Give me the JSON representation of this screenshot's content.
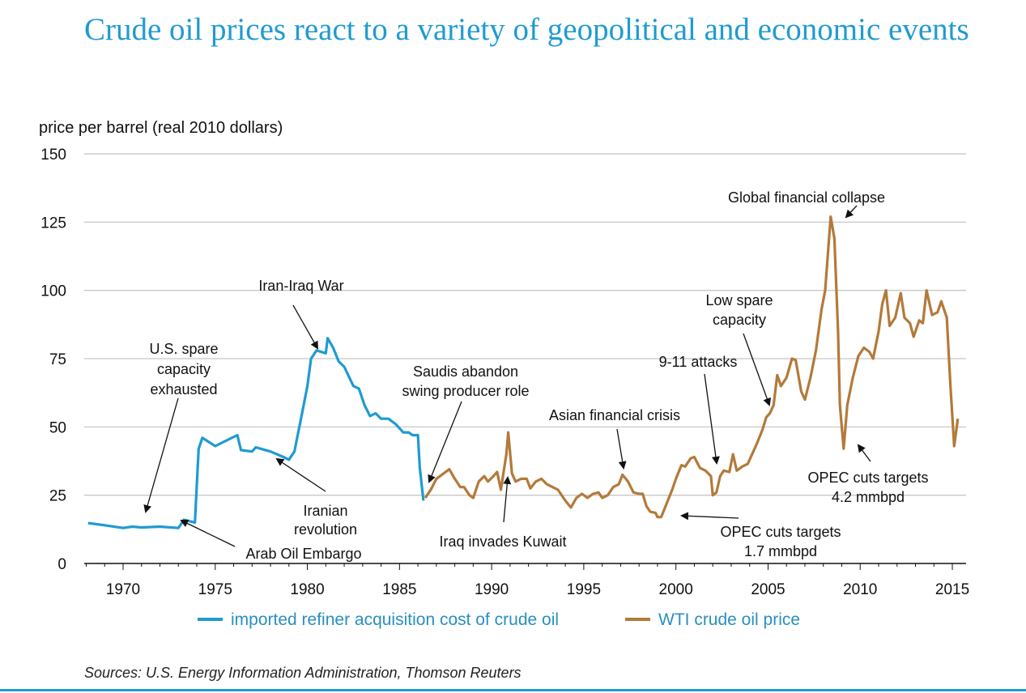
{
  "title": "Crude oil prices react to a variety of geopolitical and economic events",
  "source": "Sources: U.S. Energy Information Administration, Thomson Reuters",
  "chart_data": {
    "type": "line",
    "ylabel": "price per barrel (real 2010 dollars)",
    "xlabel": "",
    "xlim": [
      1967.9,
      2015.8
    ],
    "ylim": [
      0,
      150
    ],
    "yticks": [
      0,
      25,
      50,
      75,
      100,
      125,
      150
    ],
    "xticks": [
      1970,
      1975,
      1980,
      1985,
      1990,
      1995,
      2000,
      2005,
      2010,
      2015
    ],
    "grid": "horizontal",
    "legend_placement": "bottom",
    "series": [
      {
        "name": "imported refiner acquisition cost of crude oil",
        "color": "#1f9bd1",
        "x": [
          1968.1,
          1969,
          1970,
          1970.5,
          1971,
          1972,
          1973,
          1973.3,
          1973.9,
          1974.1,
          1974.3,
          1975,
          1975.6,
          1976.2,
          1976.4,
          1977,
          1977.2,
          1978,
          1978.7,
          1979,
          1979.3,
          1979.8,
          1980,
          1980.2,
          1980.5,
          1981,
          1981.1,
          1981.4,
          1981.7,
          1982,
          1982.5,
          1982.8,
          1983.1,
          1983.4,
          1983.7,
          1984,
          1984.4,
          1984.8,
          1985.2,
          1985.5,
          1985.7,
          1986,
          1986.1,
          1986.3
        ],
        "y": [
          14.8,
          14,
          13,
          13.5,
          13.2,
          13.5,
          13,
          16,
          15,
          42,
          46,
          43,
          45,
          47,
          41.5,
          41,
          42.5,
          41,
          39,
          38,
          41,
          58,
          65,
          75,
          78,
          77,
          82.5,
          79,
          74,
          72,
          65,
          64,
          58,
          54,
          55,
          53,
          53,
          51,
          48,
          48,
          47,
          47,
          35,
          23
        ]
      },
      {
        "name": "WTI crude oil price",
        "color": "#b37a3a",
        "x": [
          1986.4,
          1986.7,
          1987,
          1987.4,
          1987.7,
          1988,
          1988.3,
          1988.5,
          1988.8,
          1989,
          1989.3,
          1989.6,
          1989.8,
          1990.1,
          1990.3,
          1990.5,
          1990.8,
          1990.9,
          1991.1,
          1991.3,
          1991.6,
          1991.9,
          1992.1,
          1992.4,
          1992.7,
          1993,
          1993.3,
          1993.6,
          1994,
          1994.3,
          1994.6,
          1994.9,
          1995.2,
          1995.5,
          1995.8,
          1996,
          1996.3,
          1996.6,
          1996.9,
          1997.1,
          1997.4,
          1997.7,
          1998,
          1998.2,
          1998.4,
          1998.6,
          1998.9,
          1999,
          1999.2,
          1999.5,
          1999.8,
          2000,
          2000.3,
          2000.5,
          2000.8,
          2001,
          2001.3,
          2001.6,
          2001.9,
          2002,
          2002.2,
          2002.4,
          2002.6,
          2002.9,
          2003.1,
          2003.3,
          2003.6,
          2003.9,
          2004.2,
          2004.4,
          2004.7,
          2004.9,
          2005.1,
          2005.3,
          2005.5,
          2005.7,
          2006,
          2006.3,
          2006.5,
          2006.8,
          2007,
          2007.3,
          2007.6,
          2007.9,
          2008.1,
          2008.4,
          2008.6,
          2008.8,
          2008.9,
          2009.1,
          2009.3,
          2009.6,
          2009.9,
          2010.2,
          2010.5,
          2010.7,
          2011,
          2011.2,
          2011.4,
          2011.6,
          2011.9,
          2012.2,
          2012.4,
          2012.7,
          2012.9,
          2013.2,
          2013.4,
          2013.6,
          2013.9,
          2014.2,
          2014.4,
          2014.7,
          2014.9,
          2015.1,
          2015.3
        ],
        "y": [
          24,
          27,
          31,
          33,
          34.5,
          31,
          28,
          28,
          25,
          24,
          30,
          32,
          30,
          32,
          33.5,
          27,
          40,
          48,
          33,
          30,
          31,
          31,
          27.5,
          30,
          31,
          29,
          28,
          27,
          23,
          20.5,
          24,
          25.5,
          24,
          25.5,
          26,
          24,
          25,
          28,
          29,
          32.5,
          30,
          26,
          25.5,
          25.5,
          21,
          19,
          18.5,
          17,
          17,
          22,
          27,
          31,
          36,
          35.5,
          38.5,
          39,
          35,
          34,
          32,
          25,
          26,
          32,
          34,
          33.5,
          40,
          34,
          35.5,
          36.5,
          41,
          44,
          49,
          53.5,
          55,
          58,
          69,
          65,
          68,
          75,
          74.5,
          63,
          60,
          68,
          78,
          93,
          100,
          127,
          119,
          85,
          58,
          42,
          58,
          68,
          76,
          79,
          77.5,
          75,
          85,
          95,
          100,
          87,
          90,
          99,
          90,
          88,
          83,
          89,
          88,
          100,
          91,
          92,
          96,
          90,
          65,
          43,
          53
        ]
      }
    ],
    "annotations": [
      {
        "lines": [
          "U.S. spare",
          "capacity",
          "exhausted"
        ]
      },
      {
        "lines": [
          "Arab Oil Embargo"
        ]
      },
      {
        "lines": [
          "Iran-Iraq War"
        ]
      },
      {
        "lines": [
          "Iranian",
          "revolution"
        ]
      },
      {
        "lines": [
          "Saudis abandon",
          "swing producer role"
        ]
      },
      {
        "lines": [
          "Iraq invades Kuwait"
        ]
      },
      {
        "lines": [
          "Asian financial crisis"
        ]
      },
      {
        "lines": [
          "9-11 attacks"
        ]
      },
      {
        "lines": [
          "Low spare",
          "capacity"
        ]
      },
      {
        "lines": [
          "Global financial collapse"
        ]
      },
      {
        "lines": [
          "OPEC cuts targets",
          "1.7 mmbpd"
        ]
      },
      {
        "lines": [
          "OPEC cuts targets",
          "4.2 mmbpd"
        ]
      }
    ],
    "legend_text_color": "#2a8fbf",
    "title_color": "#1f9bd1"
  }
}
